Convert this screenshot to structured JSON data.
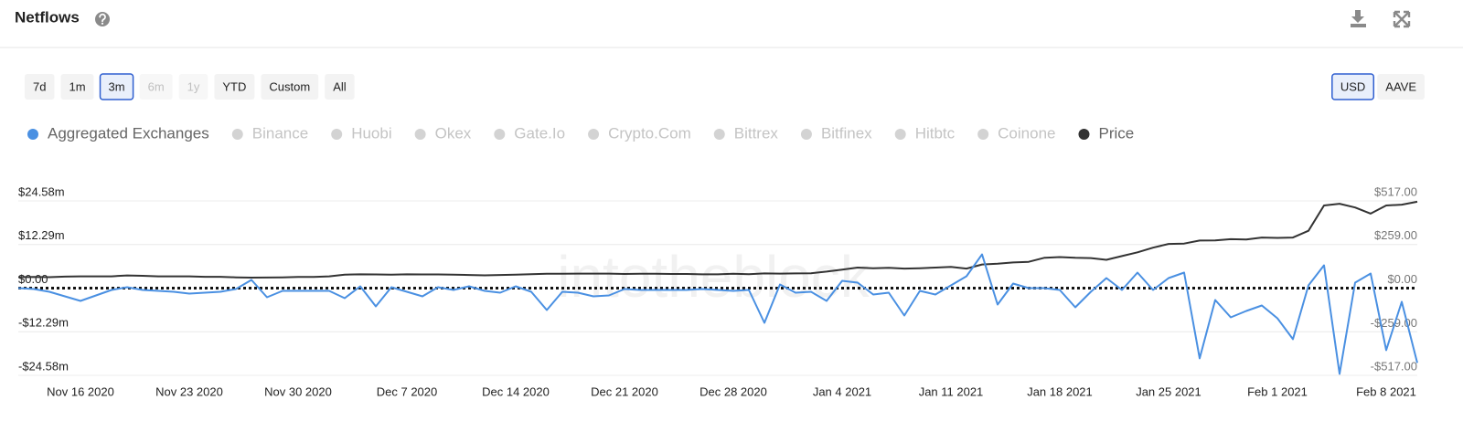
{
  "header": {
    "title": "Netflows"
  },
  "range_buttons": [
    {
      "label": "7d",
      "state": "normal"
    },
    {
      "label": "1m",
      "state": "normal"
    },
    {
      "label": "3m",
      "state": "active"
    },
    {
      "label": "6m",
      "state": "disabled"
    },
    {
      "label": "1y",
      "state": "disabled"
    },
    {
      "label": "YTD",
      "state": "normal"
    },
    {
      "label": "Custom",
      "state": "normal"
    },
    {
      "label": "All",
      "state": "normal"
    }
  ],
  "currency_buttons": [
    {
      "label": "USD",
      "state": "active"
    },
    {
      "label": "AAVE",
      "state": "normal"
    }
  ],
  "chart_data": {
    "type": "line",
    "watermark": "intotheblock",
    "inactive_series": [
      "Binance",
      "Huobi",
      "Okex",
      "Gate.Io",
      "Crypto.Com",
      "Bittrex",
      "Bitfinex",
      "Hitbtc",
      "Coinone"
    ],
    "inactive_color": "#d3d3d3",
    "categories": [
      null,
      null,
      null,
      null,
      "Nov 16 2020",
      null,
      null,
      null,
      null,
      null,
      null,
      "Nov 23 2020",
      null,
      null,
      null,
      null,
      null,
      null,
      "Nov 30 2020",
      null,
      null,
      null,
      null,
      null,
      null,
      "Dec 7 2020",
      null,
      null,
      null,
      null,
      null,
      null,
      "Dec 14 2020",
      null,
      null,
      null,
      null,
      null,
      null,
      "Dec 21 2020",
      null,
      null,
      null,
      null,
      null,
      null,
      "Dec 28 2020",
      null,
      null,
      null,
      null,
      null,
      null,
      "Jan 4 2021",
      null,
      null,
      null,
      null,
      null,
      null,
      "Jan 11 2021",
      null,
      null,
      null,
      null,
      null,
      null,
      "Jan 18 2021",
      null,
      null,
      null,
      null,
      null,
      null,
      "Jan 25 2021",
      null,
      null,
      null,
      null,
      null,
      null,
      "Feb 1 2021",
      null,
      null,
      null,
      null,
      null,
      null,
      "Feb 8 2021",
      null,
      null
    ],
    "series": [
      {
        "name": "Aggregated Exchanges",
        "color": "#4a90e2",
        "axis": "y",
        "values": [
          0,
          -0.26,
          -1.03,
          -2.31,
          -3.6,
          -2.06,
          -0.51,
          0.26,
          -0.51,
          -0.77,
          -1.03,
          -1.54,
          -1.29,
          -1.03,
          -0.26,
          2.31,
          -2.57,
          -0.77,
          -0.77,
          -0.77,
          -0.77,
          -2.83,
          0.51,
          -5.14,
          0.26,
          -1.03,
          -2.31,
          0.26,
          -0.51,
          0.51,
          -0.77,
          -1.29,
          0.51,
          -1.03,
          -6.17,
          -1.03,
          -1.29,
          -2.31,
          -2.06,
          -0.26,
          -0.51,
          -0.51,
          -0.51,
          -0.51,
          -0.26,
          -0.51,
          -0.77,
          -0.51,
          -9.77,
          1.03,
          -1.29,
          -1.03,
          -3.6,
          2.06,
          1.54,
          -1.8,
          -1.29,
          -7.71,
          -0.77,
          -1.8,
          0.77,
          3.34,
          9.51,
          -4.63,
          1.29,
          0,
          0,
          -0.51,
          -5.4,
          -1.03,
          2.83,
          -0.51,
          4.37,
          -0.51,
          2.83,
          4.37,
          -19.79,
          -3.34,
          -8.23,
          -6.43,
          -4.88,
          -8.5,
          -14.4,
          0.77,
          6.43,
          -24.16,
          1.54,
          4.11,
          -17.48,
          -3.86,
          -21.08
        ]
      },
      {
        "name": "Price",
        "color": "#333333",
        "axis": "y2",
        "values": [
          65,
          66,
          65,
          68,
          70,
          70,
          70,
          75,
          73,
          70,
          70,
          70,
          67,
          67,
          64,
          62,
          63,
          64,
          66,
          66,
          70,
          80,
          82,
          81,
          80,
          82,
          81,
          81,
          80,
          78,
          76,
          78,
          80,
          83,
          85,
          85,
          86,
          86,
          86,
          84,
          85,
          85,
          84,
          84,
          82,
          82,
          85,
          83,
          87,
          86,
          87,
          88,
          98,
          110,
          122,
          118,
          120,
          116,
          118,
          122,
          126,
          116,
          140,
          145,
          152,
          156,
          180,
          184,
          180,
          178,
          168,
          190,
          212,
          240,
          262,
          264,
          282,
          283,
          290,
          288,
          300,
          298,
          300,
          340,
          490,
          500,
          478,
          442,
          490,
          495,
          512
        ]
      }
    ],
    "ylim": [
      -24.58,
      24.58
    ],
    "yticks": [
      {
        "value": 24.58,
        "label": "$24.58m"
      },
      {
        "value": 12.29,
        "label": "$12.29m"
      },
      {
        "value": 0,
        "label": "$0.00"
      },
      {
        "value": -12.29,
        "label": "-$12.29m"
      },
      {
        "value": -24.58,
        "label": "-$24.58m"
      }
    ],
    "y2lim": [
      -517,
      517
    ],
    "y2ticks": [
      {
        "value": 517,
        "label": "$517.00"
      },
      {
        "value": 259,
        "label": "$259.00"
      },
      {
        "value": 0,
        "label": "$0.00"
      },
      {
        "value": -259,
        "label": "-$259.00"
      },
      {
        "value": -517,
        "label": "-$517.00"
      }
    ],
    "grid": true
  }
}
